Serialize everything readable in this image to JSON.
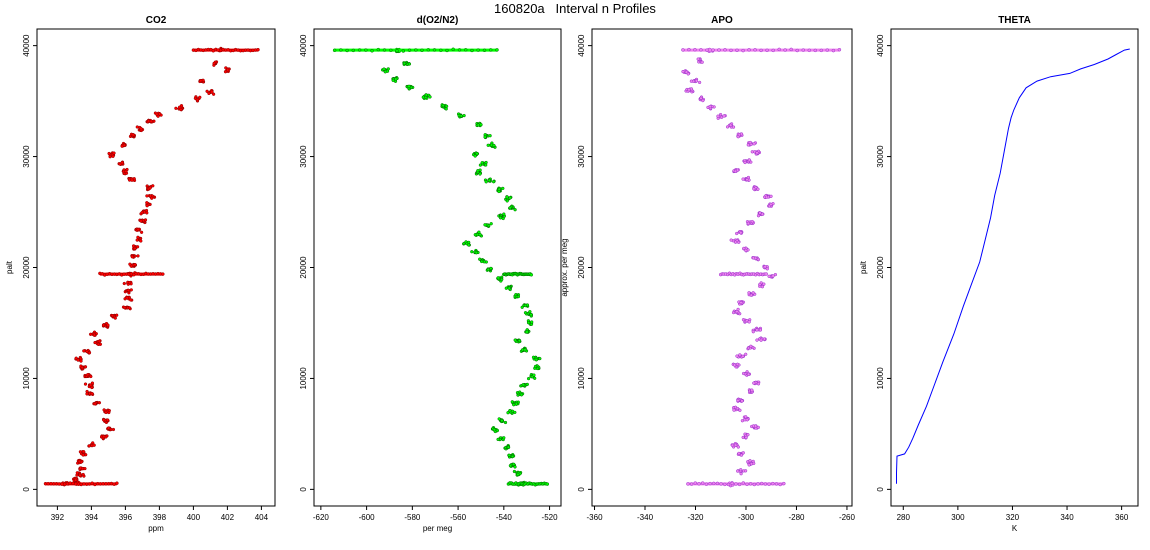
{
  "page_title": "160820a   Interval n Profiles",
  "chart_data": [
    {
      "type": "scatter",
      "title": "CO2",
      "xlabel": "ppm",
      "ylabel": "palt",
      "xlim": [
        390.8,
        404.8
      ],
      "ylim": [
        -1500,
        41500
      ],
      "xticks": [
        392,
        394,
        396,
        398,
        400,
        402,
        404
      ],
      "yticks": [
        0,
        10000,
        20000,
        30000,
        40000
      ],
      "marker_color": "#ff0000",
      "marker_edge": "#8b0000",
      "series": [
        {
          "x": [
            401.6,
            401.3,
            402.0,
            400.5,
            401.0,
            400.2,
            399.2,
            398.0,
            397.4,
            396.9,
            396.5,
            395.9,
            395.1,
            395.8,
            396.0,
            396.3,
            397.4,
            397.5,
            397.3,
            397.1,
            397.0,
            396.8,
            396.8,
            396.6,
            396.5,
            396.4,
            396.3,
            396.2,
            396.2,
            396.2,
            396.1,
            395.3,
            394.9,
            394.1,
            394.4,
            393.8,
            393.3,
            393.5,
            393.8,
            393.9,
            393.9,
            394.3,
            394.9,
            394.8,
            395.1,
            394.7,
            394.0,
            393.5,
            393.3,
            393.4,
            393.3,
            393.0,
            393.2,
            392.5
          ],
          "y": [
            39600,
            38400,
            37800,
            36800,
            35800,
            35200,
            34400,
            33800,
            33200,
            32500,
            31800,
            31000,
            30200,
            29400,
            28700,
            28000,
            27200,
            26400,
            25700,
            25000,
            24200,
            23400,
            22600,
            21800,
            21000,
            20200,
            19400,
            18600,
            17900,
            17200,
            16400,
            15600,
            14800,
            14000,
            13200,
            12400,
            11700,
            11000,
            10200,
            9400,
            8600,
            7800,
            7000,
            6200,
            5400,
            4700,
            4000,
            3200,
            2500,
            1900,
            1300,
            900,
            600,
            500
          ]
        }
      ],
      "flight_legs": [
        {
          "y": 39600,
          "x_from": 400.0,
          "x_to": 403.8
        },
        {
          "y": 19400,
          "x_from": 394.5,
          "x_to": 398.2
        },
        {
          "y": 500,
          "x_from": 391.3,
          "x_to": 395.5
        }
      ]
    },
    {
      "type": "scatter",
      "title": "d(O2/N2)",
      "xlabel": "per meg",
      "ylabel": "",
      "xlim": [
        -623,
        -515
      ],
      "ylim": [
        -1500,
        41500
      ],
      "xticks": [
        -620,
        -600,
        -580,
        -560,
        -540,
        -520
      ],
      "yticks": [
        0,
        10000,
        20000,
        30000,
        40000
      ],
      "marker_color": "#00ff00",
      "marker_edge": "#006400",
      "series": [
        {
          "x": [
            -586,
            -583,
            -592,
            -588,
            -581,
            -574,
            -566,
            -559,
            -551,
            -548,
            -545,
            -552,
            -549,
            -551,
            -546,
            -542,
            -538,
            -536,
            -541,
            -547,
            -551,
            -556,
            -552,
            -549,
            -546,
            -542,
            -538,
            -534,
            -531,
            -529,
            -528,
            -530,
            -534,
            -531,
            -526,
            -525,
            -528,
            -531,
            -533,
            -535,
            -537,
            -541,
            -544,
            -541,
            -538,
            -537,
            -536,
            -534,
            -533
          ],
          "y": [
            39600,
            38400,
            37800,
            37000,
            36200,
            35400,
            34500,
            33700,
            32900,
            31900,
            31000,
            30200,
            29400,
            28600,
            27800,
            27000,
            26200,
            25400,
            24600,
            23800,
            23000,
            22200,
            21400,
            20600,
            19800,
            19000,
            18200,
            17400,
            16600,
            15800,
            15000,
            14200,
            13400,
            12600,
            11800,
            11000,
            10200,
            9400,
            8600,
            7800,
            7000,
            6200,
            5400,
            4600,
            3800,
            3000,
            2200,
            1400,
            500
          ]
        }
      ],
      "flight_legs": [
        {
          "y": 39600,
          "x_from": -614,
          "x_to": -543
        },
        {
          "y": 19400,
          "x_from": -540,
          "x_to": -528
        },
        {
          "y": 500,
          "x_from": -538,
          "x_to": -521
        }
      ]
    },
    {
      "type": "scatter",
      "title": "APO",
      "xlabel": "",
      "ylabel": "approx. per meg",
      "xlim": [
        -361,
        -258
      ],
      "ylim": [
        -1500,
        41500
      ],
      "xticks": [
        -360,
        -340,
        -320,
        -300,
        -280,
        -260
      ],
      "yticks": [
        0,
        10000,
        20000,
        30000,
        40000
      ],
      "marker_color": "#ee82ee",
      "marker_edge": "#9932cc",
      "series": [
        {
          "x": [
            -314,
            -318,
            -324,
            -320,
            -322,
            -318,
            -314,
            -310,
            -306,
            -302,
            -298,
            -296,
            -300,
            -304,
            -300,
            -296,
            -292,
            -290,
            -294,
            -298,
            -302,
            -304,
            -300,
            -296,
            -292,
            -290,
            -294,
            -298,
            -302,
            -304,
            -300,
            -296,
            -294,
            -298,
            -302,
            -304,
            -300,
            -296,
            -298,
            -302,
            -304,
            -300,
            -296,
            -300,
            -304,
            -302,
            -298,
            -302,
            -306
          ],
          "y": [
            39600,
            38600,
            37600,
            36800,
            36000,
            35200,
            34400,
            33600,
            32800,
            32000,
            31200,
            30400,
            29600,
            28800,
            28000,
            27200,
            26400,
            25600,
            24800,
            24000,
            23200,
            22400,
            21600,
            20800,
            20000,
            19200,
            18400,
            17600,
            16800,
            16000,
            15200,
            14400,
            13600,
            12800,
            12000,
            11200,
            10400,
            9600,
            8800,
            8000,
            7200,
            6400,
            5600,
            4800,
            4000,
            3200,
            2400,
            1600,
            500
          ]
        }
      ],
      "flight_legs": [
        {
          "y": 39600,
          "x_from": -325,
          "x_to": -263
        },
        {
          "y": 19400,
          "x_from": -310,
          "x_to": -292
        },
        {
          "y": 500,
          "x_from": -323,
          "x_to": -285
        }
      ]
    },
    {
      "type": "line",
      "title": "THETA",
      "xlabel": "K",
      "ylabel": "palt",
      "xlim": [
        275.5,
        366
      ],
      "ylim": [
        -1500,
        41500
      ],
      "xticks": [
        280,
        300,
        320,
        340,
        360
      ],
      "yticks": [
        0,
        10000,
        20000,
        30000,
        40000
      ],
      "line_color": "#0000ff",
      "series": [
        {
          "x": [
            277.5,
            277.5,
            277.7,
            280.5,
            282.0,
            283.5,
            285.5,
            288.5,
            291.5,
            294.5,
            298.5,
            302.0,
            305.0,
            308.0,
            310.0,
            312.0,
            313.5,
            315.5,
            317.0,
            318.5,
            319.5,
            320.5,
            322.5,
            325.0,
            329.0,
            334.0,
            341.0,
            345.0,
            350.0,
            355.0,
            358.0,
            361.0,
            363.0
          ],
          "y": [
            500,
            1500,
            3000,
            3200,
            3800,
            4600,
            5800,
            7500,
            9500,
            11500,
            14000,
            16500,
            18500,
            20500,
            22500,
            24500,
            26500,
            28500,
            30500,
            32500,
            33500,
            34200,
            35300,
            36200,
            36800,
            37200,
            37500,
            37900,
            38300,
            38800,
            39200,
            39600,
            39700
          ]
        }
      ]
    }
  ]
}
